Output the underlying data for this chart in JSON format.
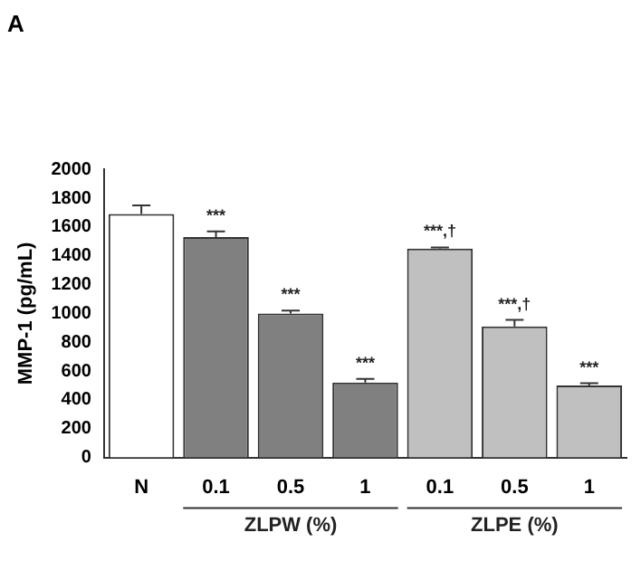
{
  "chart_data": {
    "type": "bar",
    "title": "A",
    "ylabel": "MMP-1 (pg/mL)",
    "categories": [
      "N",
      "0.1",
      "0.5",
      "1",
      "0.1",
      "0.5",
      "1"
    ],
    "values": [
      1690,
      1530,
      1000,
      520,
      1450,
      910,
      500
    ],
    "colors": [
      "#ffffff",
      "#808080",
      "#808080",
      "#808080",
      "#c0c0c0",
      "#c0c0c0",
      "#c0c0c0"
    ],
    "errors": [
      [
        1690,
        1750
      ],
      [
        1530,
        1570
      ],
      [
        1000,
        1020
      ],
      [
        520,
        545
      ],
      [
        1450,
        1458
      ],
      [
        910,
        955
      ],
      [
        500,
        515
      ]
    ],
    "value_labels": [
      null,
      "***",
      "***",
      "***",
      "***,†",
      "***,†",
      "***"
    ],
    "annotations": [
      "ZLPW (%)",
      "ZLPE (%)"
    ],
    "ylim": [
      0,
      2000
    ],
    "yticks": [
      0,
      200,
      400,
      600,
      800,
      1000,
      1200,
      1400,
      1600,
      1800,
      2000
    ],
    "grid": false,
    "legend": false
  }
}
